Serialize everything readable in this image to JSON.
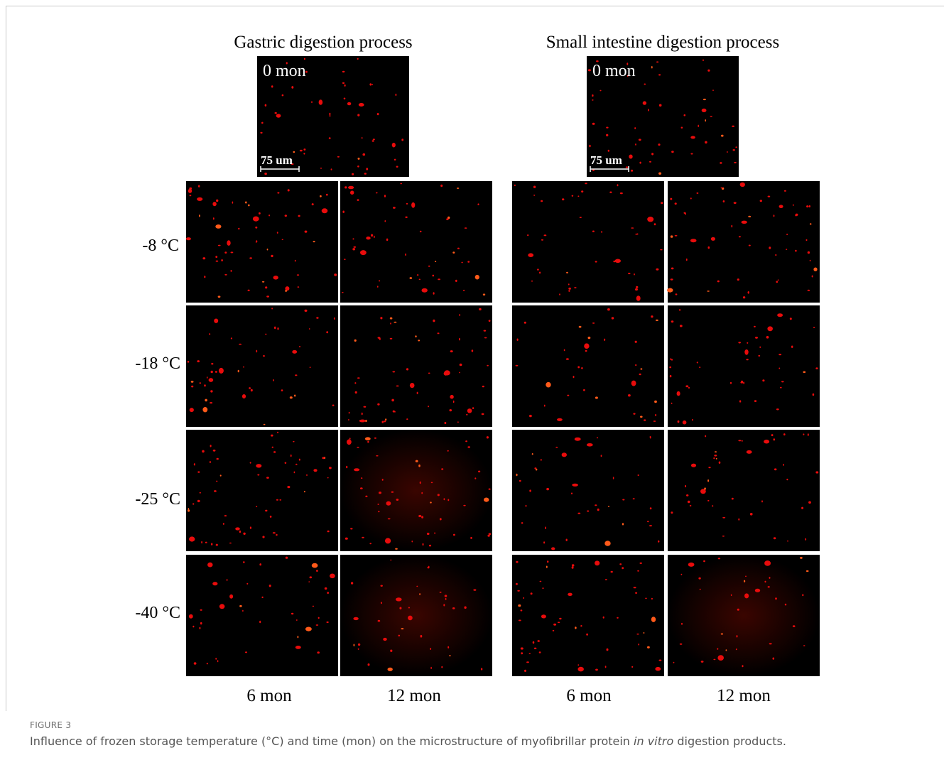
{
  "figure": {
    "panel_titles": [
      "Gastric digestion process",
      "Small intestine digestion process"
    ],
    "baseline_labels": [
      "0 mon",
      "0 mon"
    ],
    "scale_bar_labels": [
      "75 um",
      "75 um"
    ],
    "row_labels": [
      "-8 °C",
      "-18 °C",
      "-25 °C",
      "-40 °C"
    ],
    "column_labels": [
      "6 mon",
      "12 mon",
      "6 mon",
      "12 mon"
    ]
  },
  "caption": {
    "label": "FIGURE 3",
    "text_before": "Influence of frozen storage temperature (°C) and time (mon) on the microstructure of myofibrillar protein ",
    "text_italic": "in vitro",
    "text_after": " digestion products."
  }
}
